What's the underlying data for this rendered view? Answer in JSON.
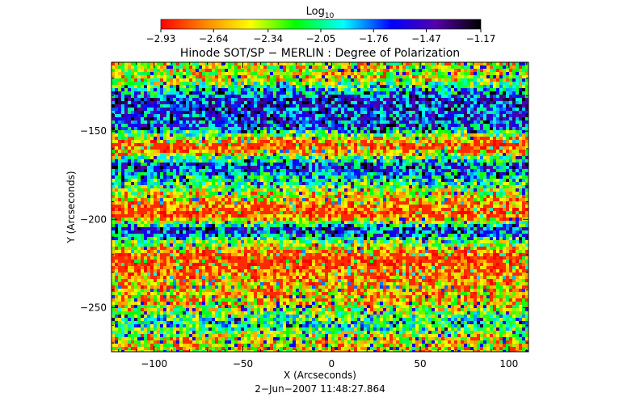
{
  "chart_data": {
    "type": "heatmap",
    "title": "Hinode SOT/SP − MERLIN : Degree of Polarization",
    "xlabel": "X (Arcseconds)",
    "ylabel": "Y (Arcseconds)",
    "timestamp": "2−Jun−2007 11:48:27.864",
    "xlim": [
      -124,
      111
    ],
    "ylim": [
      -275,
      -111
    ],
    "xticks": [
      -100,
      -50,
      0,
      50,
      100
    ],
    "xtick_labels": [
      "−100",
      "−50",
      "0",
      "50",
      "100"
    ],
    "yticks": [
      -150,
      -200,
      -250
    ],
    "ytick_labels": [
      "−150",
      "−200",
      "−250"
    ],
    "colorbar": {
      "label": "Log",
      "label_sub": "10",
      "range": [
        -2.93,
        -1.17
      ],
      "tick_values": [
        -2.93,
        -2.64,
        -2.34,
        -2.05,
        -1.76,
        -1.47,
        -1.17
      ],
      "tick_labels": [
        "−2.93",
        "−2.64",
        "−2.34",
        "−2.05",
        "−1.76",
        "−1.47",
        "−1.17"
      ],
      "colormap": [
        "#ff0000",
        "#ff8800",
        "#ffff00",
        "#00ff00",
        "#00ffff",
        "#0000ff",
        "#5500aa",
        "#000000"
      ]
    },
    "row_bands": [
      {
        "y": -120,
        "log10": -2.35
      },
      {
        "y": -132,
        "log10": -1.55
      },
      {
        "y": -148,
        "log10": -1.65
      },
      {
        "y": -158,
        "log10": -2.85
      },
      {
        "y": -170,
        "log10": -1.6
      },
      {
        "y": -185,
        "log10": -2.3
      },
      {
        "y": -197,
        "log10": -2.85
      },
      {
        "y": -206,
        "log10": -1.55
      },
      {
        "y": -222,
        "log10": -2.88
      },
      {
        "y": -236,
        "log10": -2.5
      },
      {
        "y": -248,
        "log10": -2.4
      },
      {
        "y": -259,
        "log10": -1.9
      },
      {
        "y": -268,
        "log10": -2.4
      }
    ]
  }
}
